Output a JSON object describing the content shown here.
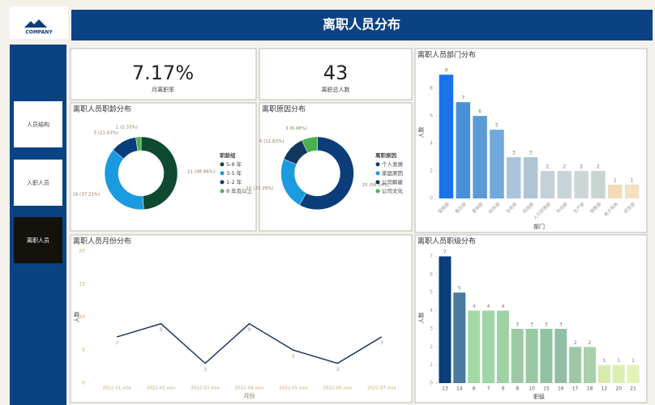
{
  "header": {
    "title": "离职人员分布",
    "logo": "COMPANY"
  },
  "nav": [
    "人员结构",
    "入职人员",
    "离职人员"
  ],
  "kpis": [
    {
      "value": "7.17%",
      "label": "月离职率"
    },
    {
      "value": "43",
      "label": "离职总人数"
    }
  ],
  "chart_data": [
    {
      "type": "pie",
      "title": "离职人员职龄分布",
      "legend_title": "职龄组",
      "categories": [
        "5-8 年",
        "3-5 年",
        "1-2 年",
        "8 年及以上"
      ],
      "values": [
        21,
        16,
        5,
        1
      ],
      "value_labels": [
        "21 (48.84%)",
        "16 (37.21%)",
        "5 (11.63%)",
        "1 (2.33%)"
      ],
      "colors": [
        "#0d4a2f",
        "#1a9be0",
        "#0b3d7a",
        "#4caf50"
      ]
    },
    {
      "type": "pie",
      "title": "离职原因分布",
      "legend_title": "离职原因",
      "categories": [
        "个人发展",
        "家庭原因",
        "公司解雇",
        "公司文化"
      ],
      "values": [
        25,
        10,
        5,
        3
      ],
      "value_labels": [
        "25 (58.14%)",
        "10 (23.26%)",
        "5 (11.63%)",
        "3 (6.98%)"
      ],
      "colors": [
        "#0b3d7a",
        "#1a9be0",
        "#12385f",
        "#4caf50"
      ]
    },
    {
      "type": "bar",
      "title": "离职人员部门分布",
      "x_label": "部门",
      "y_label": "人数",
      "categories": [
        "客服部",
        "售后部",
        "营销部",
        "财务部",
        "法务部",
        "商政部",
        "人力资源部",
        "市场部",
        "生产部",
        "销售部",
        "电子商务",
        "研发部"
      ],
      "values": [
        9,
        7,
        6,
        5,
        3,
        3,
        2,
        2,
        2,
        2,
        1,
        1
      ],
      "colors": [
        "#1a73e8",
        "#4a90d9",
        "#5b9bd5",
        "#6fa8dc",
        "#a9c4dc",
        "#b0c4d4",
        "#c5d1d8",
        "#c8d4d8",
        "#ccd6d6",
        "#c9d5d3",
        "#f0dcb8",
        "#f2e0c0"
      ],
      "ylim": [
        0,
        9.6
      ],
      "yticks": [
        0,
        2,
        4,
        6,
        8
      ]
    },
    {
      "type": "line",
      "title": "离职人员月份分布",
      "x_label": "月份",
      "y_label": "人数",
      "categories": [
        "2022-01.xlsx",
        "2022-02.xlsx",
        "2022-03.xlsx",
        "2022-04.xlsx",
        "2022-05.xlsx",
        "2022-06.xlsx",
        "2022-07.xlsx"
      ],
      "values": [
        7,
        9,
        3,
        9,
        5,
        3,
        7
      ],
      "color": "#1f3a5f",
      "ylim": [
        0,
        20
      ],
      "yticks": [
        0,
        5,
        10,
        15,
        20
      ]
    },
    {
      "type": "bar",
      "title": "离职人员职级分布",
      "x_label": "职级",
      "y_label": "人数",
      "categories": [
        "13",
        "14",
        "6",
        "7",
        "9",
        "8",
        "10",
        "15",
        "16",
        "17",
        "18",
        "12",
        "20",
        "21"
      ],
      "values": [
        7,
        5,
        4,
        4,
        4,
        3,
        3,
        3,
        3,
        2,
        2,
        1,
        1,
        1
      ],
      "colors": [
        "#0b3d7a",
        "#4a7aa0",
        "#a3d9a5",
        "#9fd4a4",
        "#a0d1a3",
        "#9ccaa5",
        "#98c8a4",
        "#90c2a4",
        "#8fc0a5",
        "#9cc8a8",
        "#a8d0aa",
        "#d8ecb0",
        "#dcefb2",
        "#e2f2b8"
      ],
      "ylim": [
        0,
        7.2
      ],
      "yticks": [
        0,
        1,
        2,
        3,
        4,
        5,
        6,
        7
      ]
    }
  ]
}
